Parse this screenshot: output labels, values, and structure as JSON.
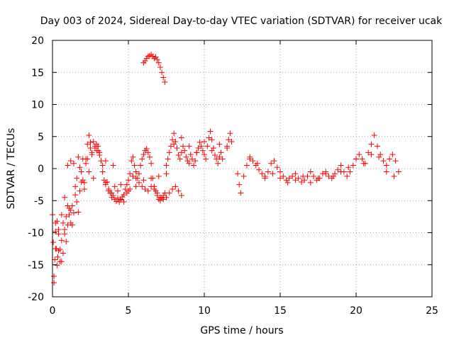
{
  "chart_data": {
    "type": "scatter",
    "title": "Day 003 of 2024, Sidereal Day-to-day VTEC variation (SDTVAR) for receiver ucak",
    "xlabel": "GPS time / hours",
    "ylabel": "SDTVAR / TECUs",
    "xlim": [
      0,
      25
    ],
    "ylim": [
      -20,
      20
    ],
    "xticks": [
      0,
      5,
      10,
      15,
      20,
      25
    ],
    "yticks": [
      -20,
      -15,
      -10,
      -5,
      0,
      5,
      10,
      15,
      20
    ],
    "grid": true,
    "marker": "plus",
    "series": [
      {
        "name": "SDTVAR",
        "color": "#ff0000",
        "x": [
          0.0,
          0.05,
          0.1,
          0.15,
          0.2,
          0.25,
          0.3,
          0.35,
          0.4,
          0.5,
          0.6,
          0.7,
          0.8,
          0.9,
          1.0,
          1.1,
          1.2,
          1.3,
          1.4,
          1.5,
          1.6,
          1.7,
          1.8,
          1.9,
          2.0,
          2.1,
          2.2,
          2.3,
          2.4,
          2.5,
          2.6,
          2.7,
          2.8,
          2.9,
          3.0,
          3.1,
          3.2,
          3.3,
          3.4,
          3.5,
          3.6,
          3.7,
          3.8,
          3.9,
          4.0,
          4.1,
          4.2,
          4.3,
          4.4,
          4.5,
          4.6,
          4.7,
          4.8,
          4.9,
          5.0,
          5.1,
          5.2,
          5.3,
          5.4,
          5.5,
          5.6,
          5.7,
          5.8,
          5.9,
          6.0,
          6.1,
          6.2,
          6.3,
          6.4,
          6.5,
          6.6,
          6.7,
          6.8,
          6.9,
          7.0,
          7.1,
          7.2,
          7.3,
          7.4,
          7.5,
          7.6,
          7.7,
          7.8,
          7.9,
          8.0,
          8.1,
          8.2,
          8.3,
          8.4,
          8.5,
          8.6,
          8.7,
          8.8,
          8.9,
          9.0,
          9.1,
          9.2,
          9.3,
          9.4,
          9.5,
          9.6,
          9.7,
          9.8,
          9.9,
          10.0,
          10.1,
          10.2,
          10.3,
          10.4,
          10.5,
          10.6,
          10.7,
          10.8,
          10.9,
          11.0,
          11.1,
          11.2,
          11.5,
          11.6,
          11.7,
          11.8,
          12.2,
          12.3,
          12.4,
          12.6,
          12.8,
          13.0,
          13.2,
          13.4,
          13.6,
          13.8,
          14.0,
          14.2,
          14.4,
          14.6,
          14.8,
          15.0,
          15.2,
          15.4,
          15.6,
          15.8,
          16.0,
          16.2,
          16.4,
          16.6,
          16.8,
          17.0,
          17.2,
          17.4,
          17.6,
          17.8,
          18.0,
          18.2,
          18.4,
          18.6,
          18.8,
          19.0,
          19.2,
          19.4,
          19.6,
          19.8,
          20.0,
          20.2,
          20.4,
          20.6,
          20.8,
          21.0,
          21.2,
          21.4,
          21.6,
          21.8,
          22.0,
          22.2,
          22.4,
          22.6,
          22.8,
          0.1,
          0.2,
          0.3,
          0.4,
          0.5,
          0.6,
          0.7,
          0.8,
          0.9,
          1.0,
          1.1,
          1.2,
          1.3,
          1.5,
          1.7,
          1.9,
          2.1,
          2.3,
          2.5,
          2.7,
          2.9,
          3.1,
          3.3,
          3.5,
          3.7,
          3.9,
          4.1,
          4.3,
          4.5,
          4.7,
          4.9,
          5.1,
          5.3,
          5.5,
          5.7,
          5.9,
          6.1,
          6.3,
          6.5,
          6.7,
          6.9,
          7.1,
          7.3,
          7.5,
          7.7,
          7.9,
          8.1,
          8.3,
          8.5,
          6.0,
          6.1,
          6.2,
          6.3,
          6.4,
          6.5,
          6.6,
          6.7,
          6.8,
          6.9,
          7.0,
          7.1,
          7.2,
          7.3,
          7.4,
          0.2,
          0.4,
          0.6,
          0.8,
          1.0,
          1.2,
          1.4,
          1.6,
          1.8,
          2.0,
          2.2,
          2.4,
          2.6,
          2.8,
          3.0,
          3.5,
          4.0,
          4.5,
          5.0,
          5.5,
          6.0,
          6.5,
          7.0,
          7.5,
          8.0,
          8.5,
          9.0,
          9.5,
          10.0,
          10.5,
          11.0,
          11.5,
          13.0,
          13.5,
          14.0,
          14.5,
          15.0,
          15.5,
          16.0,
          16.5,
          17.0,
          17.5,
          18.0,
          18.5,
          19.0,
          19.5,
          20.0,
          20.5,
          21.0,
          21.5,
          22.0,
          22.5
        ],
        "y": [
          -7.2,
          -11.5,
          -17.8,
          -14.2,
          -9.8,
          -12.5,
          -15.1,
          -13.8,
          -10.2,
          -12.6,
          -14.5,
          -13.2,
          -9.5,
          -11.4,
          -8.8,
          -6.2,
          -8.5,
          -5.8,
          -6.9,
          -4.1,
          -5.2,
          -6.8,
          -3.5,
          -2.1,
          -1.8,
          -3.2,
          1.5,
          3.8,
          5.2,
          4.1,
          2.2,
          -1.5,
          3.2,
          2.8,
          3.5,
          2.1,
          1.2,
          -0.5,
          -1.8,
          -2.5,
          -2.1,
          -3.2,
          -3.8,
          -4.5,
          -4.2,
          -4.8,
          -5.1,
          -4.6,
          -5.2,
          -4.9,
          -4.4,
          -4.1,
          -3.2,
          -2.5,
          -1.8,
          -0.8,
          1.2,
          1.8,
          0.5,
          -0.5,
          -1.5,
          -0.8,
          0.5,
          1.5,
          2.2,
          2.8,
          3.1,
          2.5,
          1.8,
          0.8,
          -1.5,
          -2.8,
          -3.5,
          -4.2,
          -4.8,
          -5.0,
          -4.6,
          -4.2,
          -3.8,
          0.5,
          1.5,
          2.5,
          3.5,
          4.5,
          5.5,
          4.2,
          3.2,
          2.1,
          1.5,
          2.5,
          3.5,
          2.8,
          1.8,
          1.2,
          0.8,
          2.2,
          1.5,
          0.5,
          1.2,
          2.5,
          3.2,
          4.1,
          3.5,
          2.8,
          2.2,
          1.5,
          3.5,
          4.8,
          5.8,
          4.5,
          3.2,
          2.1,
          1.5,
          0.8,
          1.8,
          2.5,
          1.5,
          3.5,
          4.5,
          5.5,
          4.2,
          -0.8,
          -2.5,
          -3.8,
          -1.2,
          0.5,
          1.8,
          1.2,
          0.5,
          -0.2,
          -0.8,
          -1.5,
          -0.5,
          0.8,
          1.2,
          0.2,
          -0.5,
          -1.2,
          -1.8,
          -1.5,
          -1.2,
          -0.8,
          -1.5,
          -2.1,
          -1.8,
          -1.2,
          -0.5,
          -1.2,
          -1.8,
          -1.5,
          -0.8,
          -0.5,
          -1.2,
          -1.5,
          -0.8,
          -0.2,
          0.5,
          -0.5,
          -1.2,
          -0.5,
          0.5,
          1.5,
          2.2,
          1.5,
          0.8,
          2.5,
          3.8,
          5.2,
          3.5,
          2.2,
          1.2,
          0.5,
          1.5,
          2.2,
          1.2,
          -0.5,
          -16.8,
          -12.5,
          -8.2,
          -12.8,
          -14.5,
          -11.2,
          -8.5,
          -10.2,
          -7.5,
          -5.8,
          -7.2,
          -6.5,
          -8.8,
          -2.8,
          1.8,
          -0.5,
          -2.2,
          1.5,
          3.2,
          4.2,
          3.8,
          2.5,
          0.5,
          -2.2,
          -3.5,
          -3.8,
          -2.8,
          -3.5,
          -4.8,
          -5.2,
          -3.8,
          -3.2,
          -1.2,
          -1.5,
          -2.2,
          -2.8,
          -3.2,
          -3.5,
          -2.8,
          -3.2,
          -3.8,
          -4.5,
          -4.8,
          -4.5,
          -3.8,
          -3.2,
          -2.8,
          -3.5,
          -4.2,
          16.5,
          16.8,
          17.2,
          17.5,
          17.6,
          17.8,
          17.5,
          17.2,
          17.4,
          17.0,
          16.5,
          15.8,
          15.0,
          14.2,
          13.5,
          -8.5,
          -9.5,
          -7.2,
          -4.5,
          0.5,
          1.2,
          0.8,
          -1.5,
          0.2,
          1.5,
          0.8,
          -0.5,
          2.5,
          3.5,
          2.8,
          1.2,
          0.5,
          -2.5,
          -3.5,
          -2.8,
          -1.8,
          -1.5,
          -1.2,
          -0.8,
          3.8,
          4.8,
          3.5,
          2.5,
          4.2,
          2.8,
          3.8,
          3.2,
          1.5,
          0.8,
          -1.2,
          -0.8,
          -1.5,
          -2.2,
          -1.8,
          -1.2,
          -2.2,
          -1.5,
          -0.8,
          -1.2,
          -0.5,
          0.2,
          1.5,
          0.8,
          2.2,
          1.8,
          -0.5,
          -1.2
        ]
      }
    ]
  }
}
